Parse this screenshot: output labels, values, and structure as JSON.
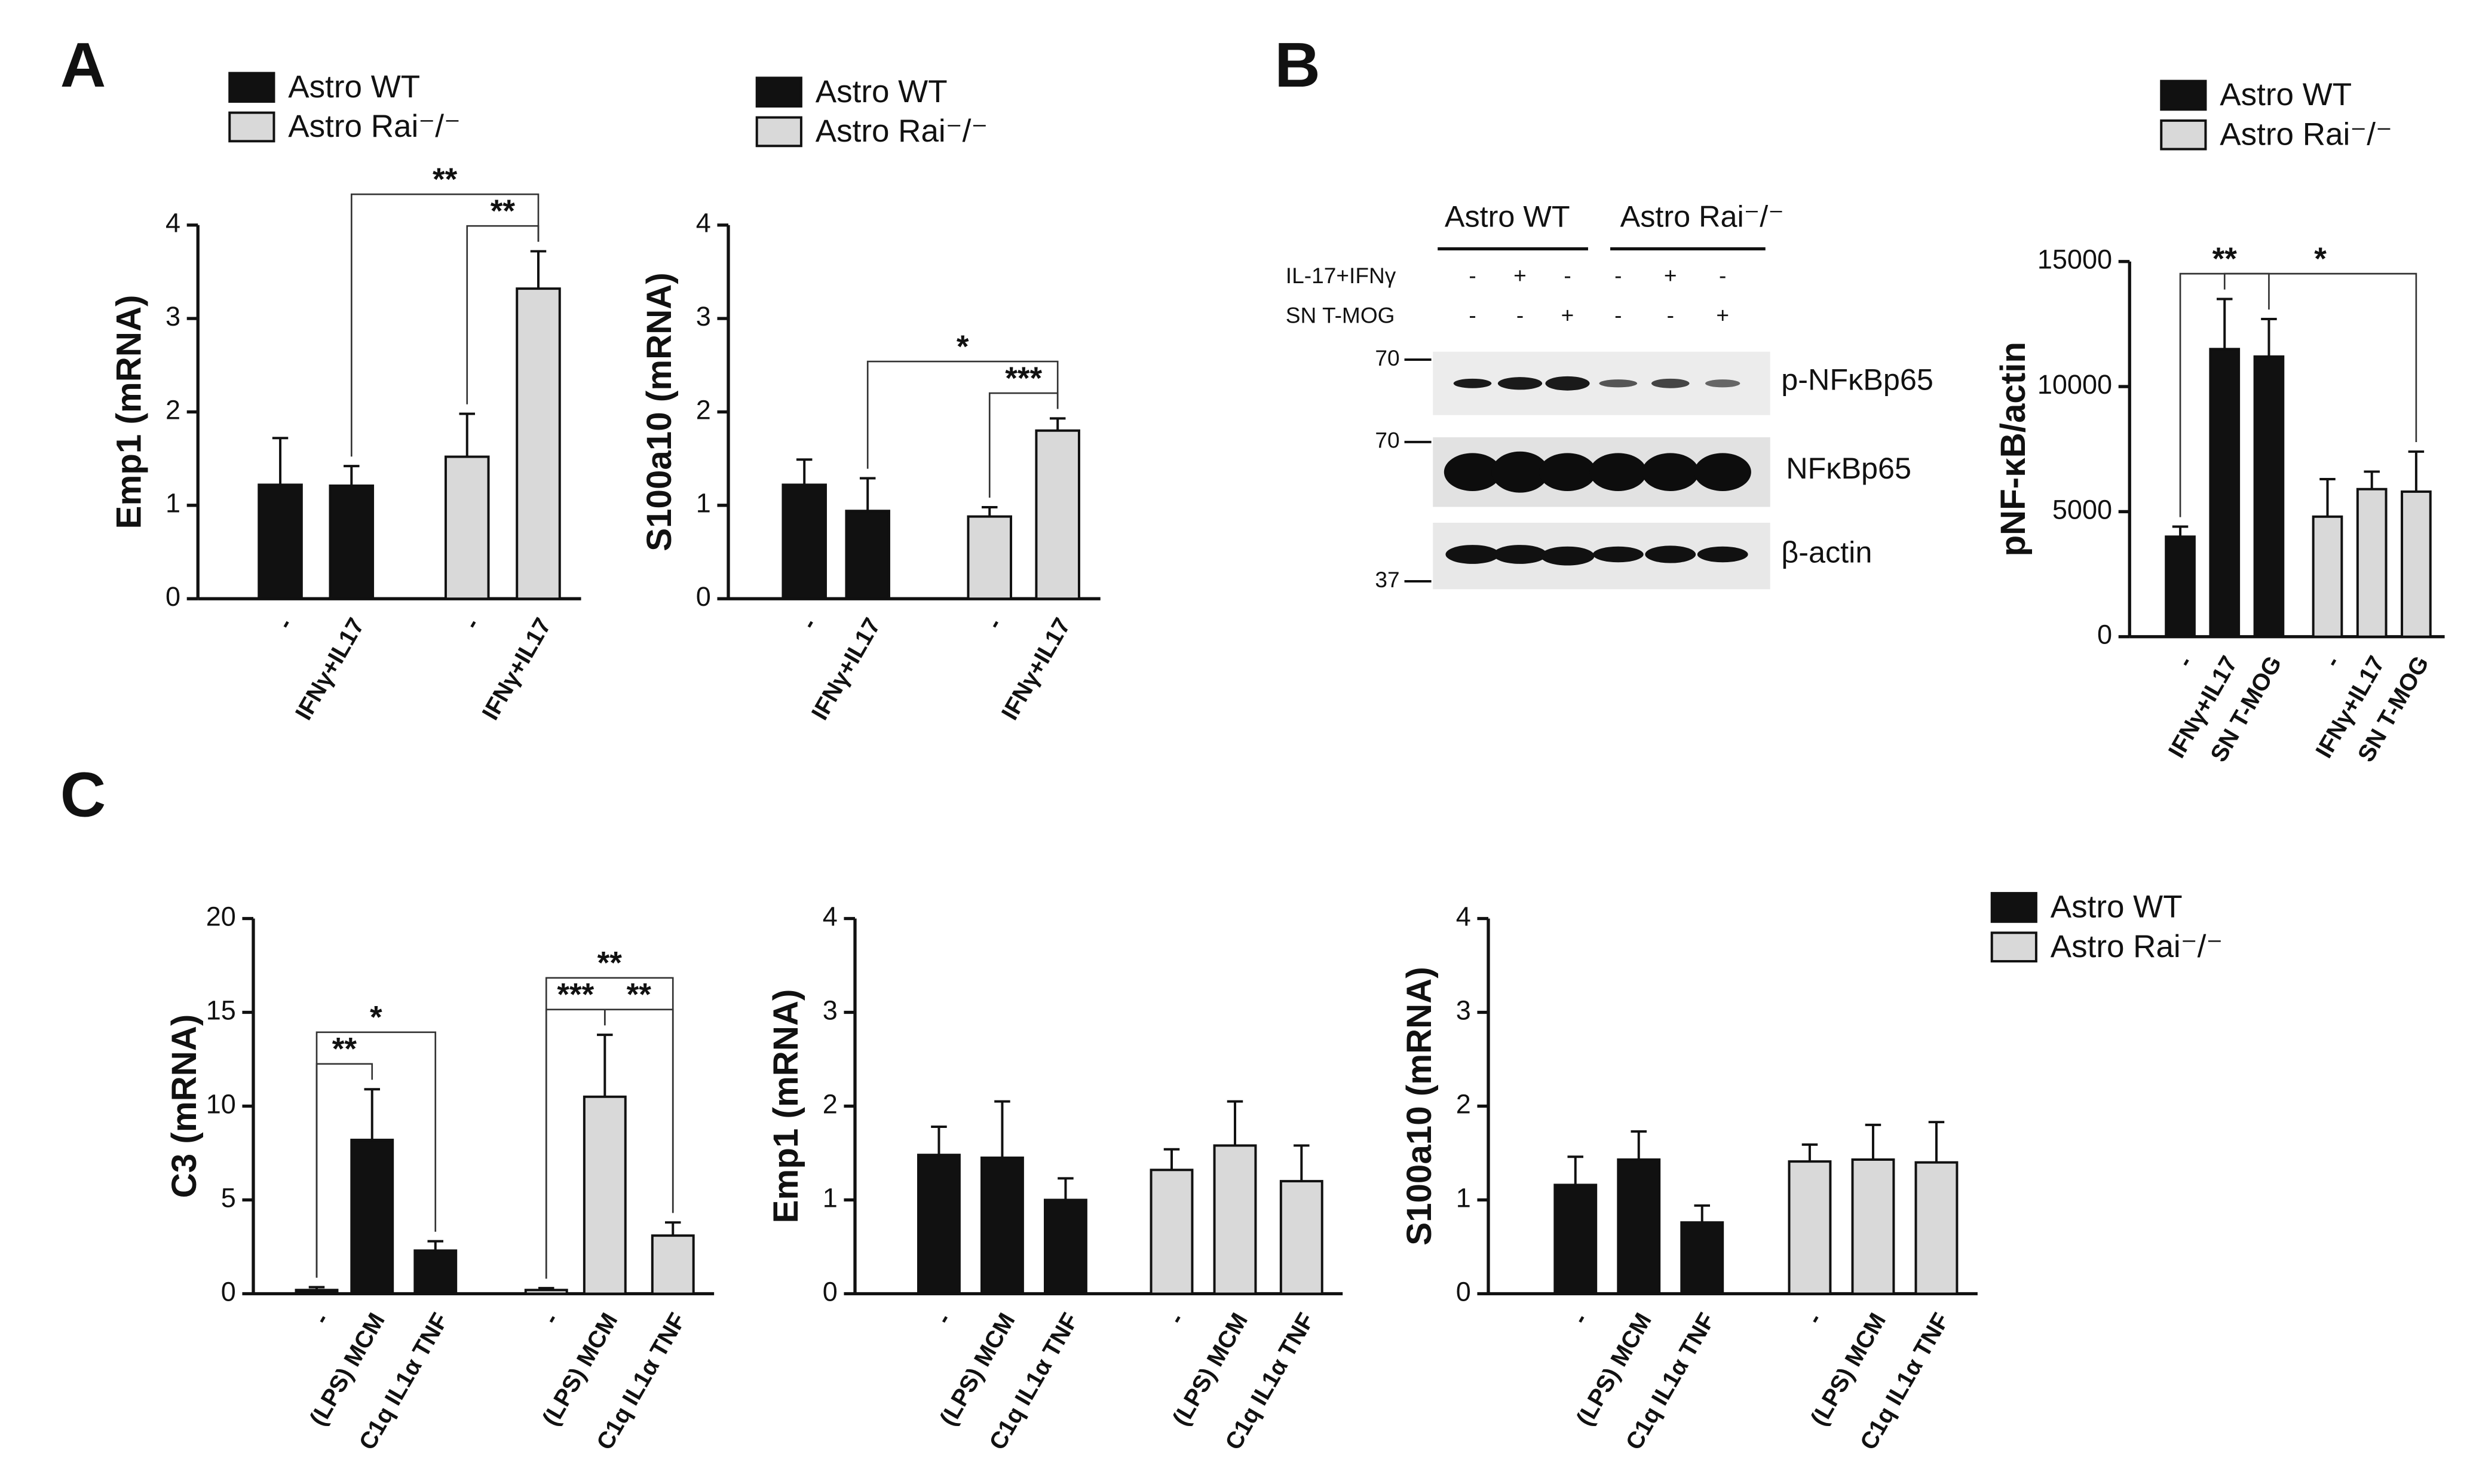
{
  "panel_labels": [
    "A",
    "B",
    "C"
  ],
  "blot": {
    "groups": [
      "Astro WT",
      "Astro Rai⁻/⁻"
    ],
    "rows": [
      {
        "label": "IL-17+IFNγ",
        "marks": [
          "-",
          "+",
          "-",
          "-",
          "+",
          "-"
        ]
      },
      {
        "label": "SN T-MOG",
        "marks": [
          "-",
          "-",
          "+",
          "-",
          "-",
          "+"
        ]
      }
    ],
    "bands": [
      "p-NFκBp65",
      "NFκBp65",
      "β-actin"
    ],
    "markers": [
      "70",
      "70",
      "37"
    ]
  },
  "chart_data": [
    {
      "type": "bar",
      "y_label": "Emp1 (mRNA)",
      "categories": [
        "-",
        "IFNγ+IL17",
        "-",
        "IFNγ+IL17"
      ],
      "series": [
        {
          "name": "Astro WT",
          "color": "#111111",
          "values": [
            1.22,
            1.21,
            null,
            null
          ],
          "errors": [
            0.5,
            0.21,
            null,
            null
          ]
        },
        {
          "name": "Astro Rai⁻/⁻",
          "color": "#d9d9d9",
          "values": [
            null,
            null,
            1.52,
            3.32
          ],
          "errors": [
            null,
            null,
            0.46,
            0.4
          ]
        }
      ],
      "ylim": [
        0,
        4
      ],
      "yticks": [
        0,
        1,
        2,
        3,
        4
      ],
      "legend": "top-left",
      "annotations": [
        {
          "from": 1,
          "to": 3,
          "label": "**"
        },
        {
          "from": 2,
          "to": 3,
          "label": "**"
        }
      ]
    },
    {
      "type": "bar",
      "y_label": "S100a10 (mRNA)",
      "categories": [
        "-",
        "IFNγ+IL17",
        "-",
        "IFNγ+IL17"
      ],
      "series": [
        {
          "name": "Astro WT",
          "color": "#111111",
          "values": [
            1.22,
            0.94,
            null,
            null
          ],
          "errors": [
            0.27,
            0.35,
            null,
            null
          ]
        },
        {
          "name": "Astro Rai⁻/⁻",
          "color": "#d9d9d9",
          "values": [
            null,
            null,
            0.88,
            1.8
          ],
          "errors": [
            null,
            null,
            0.1,
            0.13
          ]
        }
      ],
      "ylim": [
        0,
        4
      ],
      "yticks": [
        0,
        1,
        2,
        3,
        4
      ],
      "legend": "top-left",
      "annotations": [
        {
          "from": 1,
          "to": 3,
          "label": "*"
        },
        {
          "from": 2,
          "to": 3,
          "label": "***"
        }
      ]
    },
    {
      "type": "bar",
      "y_label": "pNF-κB/actin",
      "categories": [
        "-",
        "IFNγ+IL17",
        "SN T-MOG",
        "-",
        "IFNγ+IL17",
        "SN T-MOG"
      ],
      "series": [
        {
          "name": "Astro WT",
          "color": "#111111",
          "values": [
            4000,
            11500,
            11200,
            null,
            null,
            null
          ],
          "errors": [
            400,
            2000,
            1500,
            null,
            null,
            null
          ]
        },
        {
          "name": "Astro Rai⁻/⁻",
          "color": "#d9d9d9",
          "values": [
            null,
            null,
            null,
            4800,
            5900,
            5800
          ],
          "errors": [
            null,
            null,
            null,
            1500,
            700,
            1600
          ]
        }
      ],
      "ylim": [
        0,
        15000
      ],
      "yticks": [
        0,
        5000,
        10000,
        15000
      ],
      "legend": "top-left",
      "annotations": [
        {
          "from": 0,
          "to": 2,
          "label": "**"
        },
        {
          "from": 1,
          "to": 5,
          "label": "*"
        }
      ]
    },
    {
      "type": "bar",
      "y_label": "C3  (mRNA)",
      "categories": [
        "-",
        "(LPS) MCM",
        "C1q IL1α TNF",
        "-",
        "(LPS) MCM",
        "C1q IL1α TNF"
      ],
      "series": [
        {
          "color": "#111111",
          "values": [
            0.2,
            8.2,
            2.3,
            null,
            null,
            null
          ],
          "errors": [
            0.15,
            2.7,
            0.5,
            null,
            null,
            null
          ]
        },
        {
          "color": "#d9d9d9",
          "values": [
            null,
            null,
            null,
            0.2,
            10.5,
            3.1
          ],
          "errors": [
            null,
            null,
            null,
            0.1,
            3.3,
            0.7
          ]
        }
      ],
      "ylim": [
        0,
        20
      ],
      "yticks": [
        0,
        5,
        10,
        15,
        20
      ],
      "annotations": [
        {
          "from": 0,
          "to": 1,
          "label": "**"
        },
        {
          "from": 0,
          "to": 2,
          "label": "*"
        },
        {
          "from": 3,
          "to": 4,
          "label": "***"
        },
        {
          "from": 3,
          "to": 5,
          "label": "**"
        },
        {
          "from": 4,
          "to": 5,
          "label": "**"
        }
      ]
    },
    {
      "type": "bar",
      "y_label": "Emp1 (mRNA)",
      "categories": [
        "-",
        "(LPS) MCM",
        "C1q IL1α TNF",
        "-",
        "(LPS) MCM",
        "C1q IL1α TNF"
      ],
      "series": [
        {
          "color": "#111111",
          "values": [
            1.48,
            1.45,
            1.0,
            null,
            null,
            null
          ],
          "errors": [
            0.3,
            0.6,
            0.23,
            null,
            null,
            null
          ]
        },
        {
          "color": "#d9d9d9",
          "values": [
            null,
            null,
            null,
            1.32,
            1.58,
            1.2
          ],
          "errors": [
            null,
            null,
            null,
            0.22,
            0.47,
            0.38
          ]
        }
      ],
      "ylim": [
        0,
        4
      ],
      "yticks": [
        0,
        1,
        2,
        3,
        4
      ]
    },
    {
      "type": "bar",
      "y_label": "S100a10 (mRNA)",
      "categories": [
        "-",
        "(LPS) MCM",
        "C1q IL1α TNF",
        "-",
        "(LPS) MCM",
        "C1q IL1α TNF"
      ],
      "series": [
        {
          "name": "Astro WT",
          "color": "#111111",
          "values": [
            1.16,
            1.43,
            0.76,
            null,
            null,
            null
          ],
          "errors": [
            0.3,
            0.3,
            0.18,
            null,
            null,
            null
          ]
        },
        {
          "name": "Astro Rai⁻/⁻",
          "color": "#d9d9d9",
          "values": [
            null,
            null,
            null,
            1.41,
            1.43,
            1.4
          ],
          "errors": [
            null,
            null,
            null,
            0.18,
            0.37,
            0.43
          ]
        }
      ],
      "ylim": [
        0,
        4
      ],
      "yticks": [
        0,
        1,
        2,
        3,
        4
      ],
      "legend": "right"
    }
  ]
}
